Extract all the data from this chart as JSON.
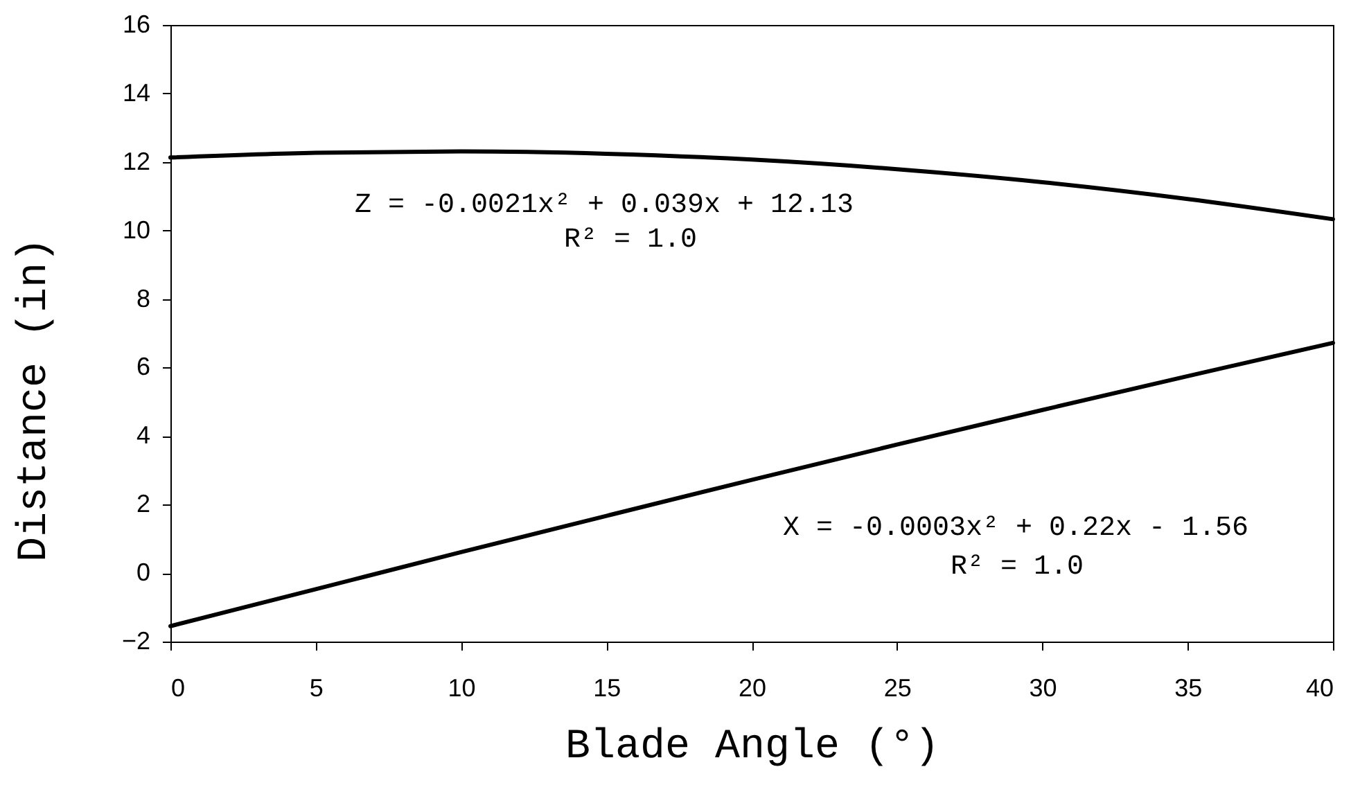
{
  "chart_data": {
    "type": "line",
    "xlabel": "Blade Angle (°)",
    "ylabel": "Distance (in)",
    "x": [
      0,
      5,
      10,
      15,
      20,
      25,
      30,
      35,
      40
    ],
    "series": [
      {
        "color": "#000000",
        "values": [
          12.13,
          12.27,
          12.31,
          12.24,
          12.07,
          11.79,
          11.41,
          10.92,
          10.33
        ]
      },
      {
        "color": "#000000",
        "values": [
          -1.55,
          -0.47,
          0.61,
          1.67,
          2.72,
          3.75,
          4.76,
          5.75,
          6.72
        ]
      }
    ],
    "xlim": [
      0,
      40
    ],
    "ylim": [
      -2,
      16
    ],
    "xticks": [
      0,
      5,
      10,
      15,
      20,
      25,
      30,
      35,
      40
    ],
    "yticks": [
      -2,
      0,
      2,
      4,
      6,
      8,
      10,
      12,
      14,
      16
    ],
    "annotations": [
      "Z = -0.0021x² + 0.039x + 12.13",
      "R² = 1.0",
      "X = -0.0003x² + 0.22x - 1.56",
      "R² = 1.0"
    ],
    "marker": "none",
    "line_style": "solid"
  }
}
